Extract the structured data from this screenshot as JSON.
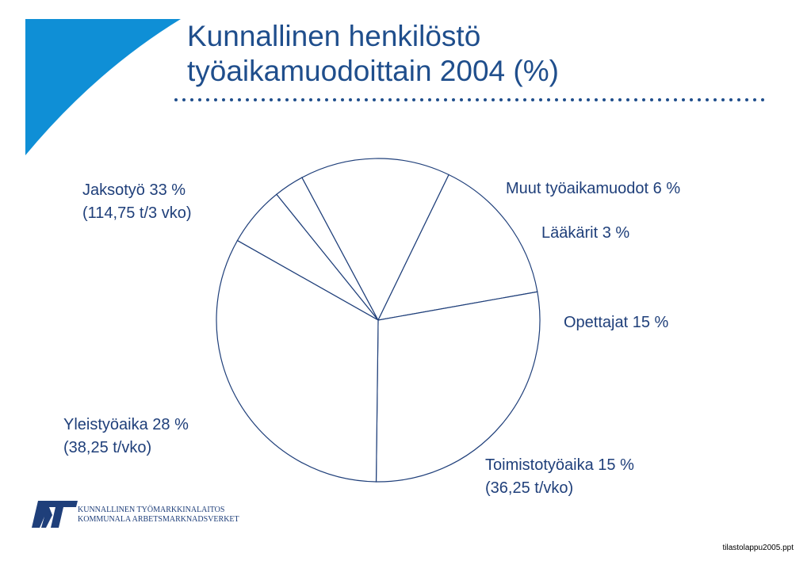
{
  "title": {
    "line1": "Kunnallinen henkilöstö",
    "line2": "työaikamuodoittain 2004 (%)"
  },
  "colors": {
    "accent": "#0f8fd6",
    "title": "#1f4e8c",
    "text": "#1f3f7a",
    "pie_stroke": "#1f3f7a",
    "logo": "#1f3f7a"
  },
  "chart_data": {
    "type": "pie",
    "title": "Kunnallinen henkilöstö työaikamuodoittain 2004 (%)",
    "slices": [
      {
        "label": "Muut työaikamuodot",
        "value": 6,
        "label_lines": [
          "Muut työaikamuodot 6 %"
        ]
      },
      {
        "label": "Lääkärit",
        "value": 3,
        "label_lines": [
          "Lääkärit 3 %"
        ]
      },
      {
        "label": "Opettajat",
        "value": 15,
        "label_lines": [
          "Opettajat 15 %"
        ]
      },
      {
        "label": "Toimistotyöaika",
        "value": 15,
        "label_lines": [
          "Toimistotyöaika 15 %",
          "(36,25 t/vko)"
        ]
      },
      {
        "label": "Yleistyöaika",
        "value": 28,
        "label_lines": [
          "Yleistyöaika 28 %",
          "(38,25 t/vko)"
        ]
      },
      {
        "label": "Jaksotyö",
        "value": 33,
        "label_lines": [
          "Jaksotyö 33 %",
          "(114,75 t/3 vko)"
        ]
      }
    ]
  },
  "footer": {
    "org_line1": "KUNNALLINEN TYÖMARKKINALAITOS",
    "org_line2": "KOMMUNALA ARBETSMARKNADSVERKET",
    "filename": "tilastolappu2005.ppt"
  }
}
